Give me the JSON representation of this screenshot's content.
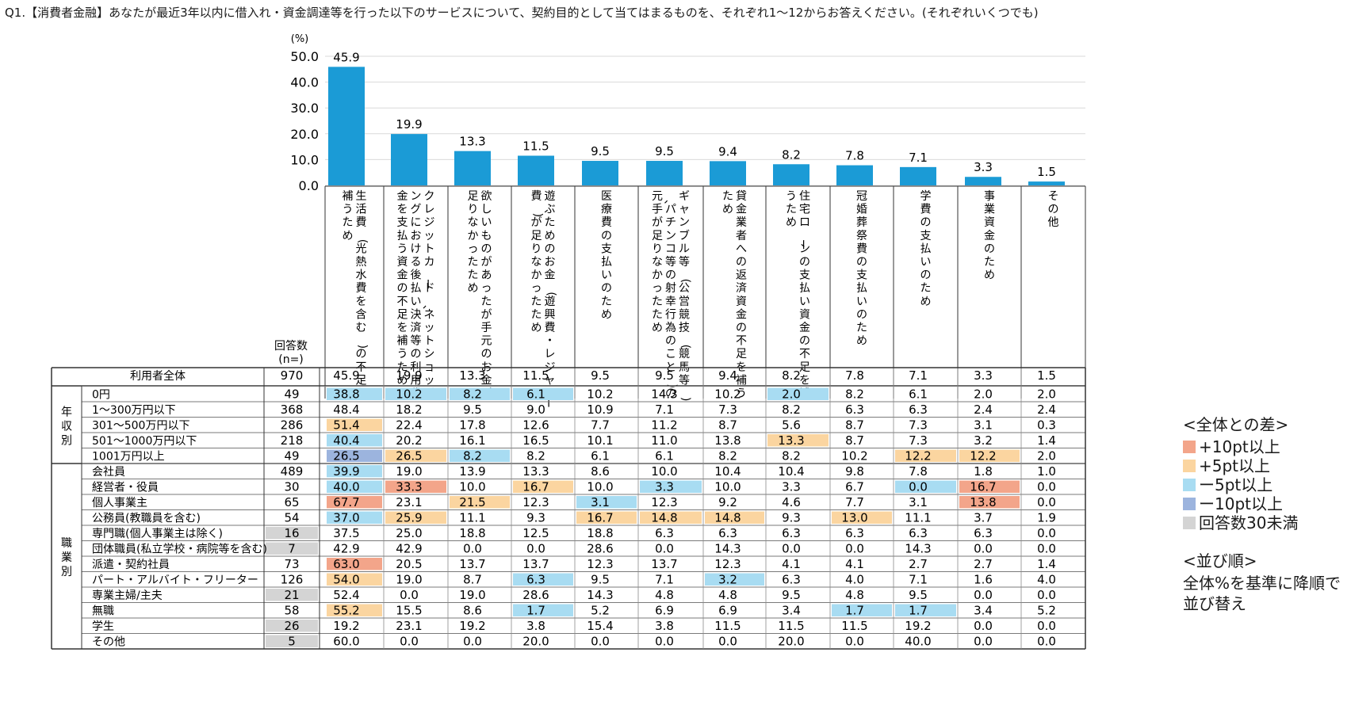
{
  "question": "Q1.【消費者金融】あなたが最近3年以内に借入れ・資金調達等を行った以下のサービスについて、契約目的として当てはまるものを、それぞれ1〜12からお答えください。(それぞれいくつでも)",
  "chart_data": {
    "type": "bar",
    "unit_label": "(%)",
    "ylim": [
      0,
      50
    ],
    "yticks": [
      "0.0",
      "10.0",
      "20.0",
      "30.0",
      "40.0",
      "50.0"
    ],
    "categories": [
      "生活費(光熱水費を含む)の不足を補うため",
      "クレジットカード、ネットショッピングにおける後払い決済等の利用代金を支払う資金の不足を補うため",
      "欲しいものがあったが手元のお金が足りなかったため",
      "遊ぶためのお金(遊興費・レジャー費)が足りなかったため",
      "医療費の支払いのため",
      "ギャンブル等(公営競技(競馬等)、パチンコ等の射幸行為のこと)の元手が足りなかったため",
      "貸金業者への返済資金の不足を補うため",
      "住宅ローンの支払い資金の不足を補うため",
      "冠婚葬祭費の支払いのため",
      "学費の支払いのため",
      "事業資金のため",
      "その他"
    ],
    "values": [
      45.9,
      19.9,
      13.3,
      11.5,
      9.5,
      9.5,
      9.4,
      8.2,
      7.8,
      7.1,
      3.3,
      1.5
    ],
    "bar_color": "#1b9bd6",
    "grid": true
  },
  "table": {
    "n_header": "回答数(n=)",
    "total": {
      "label": "利用者全体",
      "n": "970",
      "values": [
        "45.9",
        "19.9",
        "13.3",
        "11.5",
        "9.5",
        "9.5",
        "9.4",
        "8.2",
        "7.8",
        "7.1",
        "3.3",
        "1.5"
      ]
    },
    "groups": [
      {
        "label": "年収別",
        "rows": [
          {
            "label": "0円",
            "n": "49",
            "values": [
              "38.8",
              "10.2",
              "8.2",
              "6.1",
              "10.2",
              "14.3",
              "10.2",
              "2.0",
              "8.2",
              "6.1",
              "2.0",
              "2.0"
            ],
            "marks": [
              "m5",
              "m5",
              "m5",
              "m5",
              "",
              "",
              "",
              "m5",
              "",
              "",
              "",
              ""
            ]
          },
          {
            "label": "1〜300万円以下",
            "n": "368",
            "values": [
              "48.4",
              "18.2",
              "9.5",
              "9.0",
              "10.9",
              "7.1",
              "7.3",
              "8.2",
              "6.3",
              "6.3",
              "2.4",
              "2.4"
            ],
            "marks": [
              "",
              "",
              "",
              "",
              "",
              "",
              "",
              "",
              "",
              "",
              "",
              ""
            ]
          },
          {
            "label": "301〜500万円以下",
            "n": "286",
            "values": [
              "51.4",
              "22.4",
              "17.8",
              "12.6",
              "7.7",
              "11.2",
              "8.7",
              "5.6",
              "8.7",
              "7.3",
              "3.1",
              "0.3"
            ],
            "marks": [
              "p5",
              "",
              "",
              "",
              "",
              "",
              "",
              "",
              "",
              "",
              "",
              ""
            ]
          },
          {
            "label": "501〜1000万円以下",
            "n": "218",
            "values": [
              "40.4",
              "20.2",
              "16.1",
              "16.5",
              "10.1",
              "11.0",
              "13.8",
              "13.3",
              "8.7",
              "7.3",
              "3.2",
              "1.4"
            ],
            "marks": [
              "m5",
              "",
              "",
              "",
              "",
              "",
              "",
              "p5",
              "",
              "",
              "",
              ""
            ]
          },
          {
            "label": "1001万円以上",
            "n": "49",
            "values": [
              "26.5",
              "26.5",
              "8.2",
              "8.2",
              "6.1",
              "6.1",
              "8.2",
              "8.2",
              "10.2",
              "12.2",
              "12.2",
              "2.0"
            ],
            "marks": [
              "m10",
              "p5",
              "m5",
              "",
              "",
              "",
              "",
              "",
              "",
              "p5",
              "p5",
              ""
            ]
          }
        ]
      },
      {
        "label": "職業別",
        "rows": [
          {
            "label": "会社員",
            "n": "489",
            "values": [
              "39.9",
              "19.0",
              "13.9",
              "13.3",
              "8.6",
              "10.0",
              "10.4",
              "10.4",
              "9.8",
              "7.8",
              "1.8",
              "1.0"
            ],
            "marks": [
              "m5",
              "",
              "",
              "",
              "",
              "",
              "",
              "",
              "",
              "",
              "",
              ""
            ]
          },
          {
            "label": "経営者・役員",
            "n": "30",
            "values": [
              "40.0",
              "33.3",
              "10.0",
              "16.7",
              "10.0",
              "3.3",
              "10.0",
              "3.3",
              "6.7",
              "0.0",
              "16.7",
              "0.0"
            ],
            "marks": [
              "m5",
              "p10",
              "",
              "p5",
              "",
              "m5",
              "",
              "",
              "",
              "m5",
              "p10",
              ""
            ]
          },
          {
            "label": "個人事業主",
            "n": "65",
            "values": [
              "67.7",
              "23.1",
              "21.5",
              "12.3",
              "3.1",
              "12.3",
              "9.2",
              "4.6",
              "7.7",
              "3.1",
              "13.8",
              "0.0"
            ],
            "marks": [
              "p10",
              "",
              "p5",
              "",
              "m5",
              "",
              "",
              "",
              "",
              "",
              "p10",
              ""
            ]
          },
          {
            "label": "公務員(教職員を含む)",
            "n": "54",
            "values": [
              "37.0",
              "25.9",
              "11.1",
              "9.3",
              "16.7",
              "14.8",
              "14.8",
              "9.3",
              "13.0",
              "11.1",
              "3.7",
              "1.9"
            ],
            "marks": [
              "m5",
              "p5",
              "",
              "",
              "p5",
              "p5",
              "p5",
              "",
              "p5",
              "",
              "",
              ""
            ]
          },
          {
            "label": "専門職(個人事業主は除く)",
            "n": "16",
            "values": [
              "37.5",
              "25.0",
              "18.8",
              "12.5",
              "18.8",
              "6.3",
              "6.3",
              "6.3",
              "6.3",
              "6.3",
              "6.3",
              "0.0"
            ],
            "marks": [
              "",
              "",
              "",
              "",
              "",
              "",
              "",
              "",
              "",
              "",
              "",
              ""
            ],
            "low_n": true
          },
          {
            "label": "団体職員(私立学校・病院等を含む)",
            "n": "7",
            "values": [
              "42.9",
              "42.9",
              "0.0",
              "0.0",
              "28.6",
              "0.0",
              "14.3",
              "0.0",
              "0.0",
              "14.3",
              "0.0",
              "0.0"
            ],
            "marks": [
              "",
              "",
              "",
              "",
              "",
              "",
              "",
              "",
              "",
              "",
              "",
              ""
            ],
            "low_n": true
          },
          {
            "label": "派遣・契約社員",
            "n": "73",
            "values": [
              "63.0",
              "20.5",
              "13.7",
              "13.7",
              "12.3",
              "13.7",
              "12.3",
              "4.1",
              "4.1",
              "2.7",
              "2.7",
              "1.4"
            ],
            "marks": [
              "p10",
              "",
              "",
              "",
              "",
              "",
              "",
              "",
              "",
              "",
              "",
              ""
            ]
          },
          {
            "label": "パート・アルバイト・フリーター",
            "n": "126",
            "values": [
              "54.0",
              "19.0",
              "8.7",
              "6.3",
              "9.5",
              "7.1",
              "3.2",
              "6.3",
              "4.0",
              "7.1",
              "1.6",
              "4.0"
            ],
            "marks": [
              "p5",
              "",
              "",
              "m5",
              "",
              "",
              "m5",
              "",
              "",
              "",
              "",
              ""
            ]
          },
          {
            "label": "専業主婦/主夫",
            "n": "21",
            "values": [
              "52.4",
              "0.0",
              "19.0",
              "28.6",
              "14.3",
              "4.8",
              "4.8",
              "9.5",
              "4.8",
              "9.5",
              "0.0",
              "0.0"
            ],
            "marks": [
              "",
              "",
              "",
              "",
              "",
              "",
              "",
              "",
              "",
              "",
              "",
              ""
            ],
            "low_n": true
          },
          {
            "label": "無職",
            "n": "58",
            "values": [
              "55.2",
              "15.5",
              "8.6",
              "1.7",
              "5.2",
              "6.9",
              "6.9",
              "3.4",
              "1.7",
              "1.7",
              "3.4",
              "5.2"
            ],
            "marks": [
              "p5",
              "",
              "",
              "m5",
              "",
              "",
              "",
              "",
              "m5",
              "m5",
              "",
              ""
            ]
          },
          {
            "label": "学生",
            "n": "26",
            "values": [
              "19.2",
              "23.1",
              "19.2",
              "3.8",
              "15.4",
              "3.8",
              "11.5",
              "11.5",
              "11.5",
              "19.2",
              "0.0",
              "0.0"
            ],
            "marks": [
              "",
              "",
              "",
              "",
              "",
              "",
              "",
              "",
              "",
              "",
              "",
              ""
            ],
            "low_n": true
          },
          {
            "label": "その他",
            "n": "5",
            "values": [
              "60.0",
              "0.0",
              "0.0",
              "20.0",
              "0.0",
              "0.0",
              "0.0",
              "20.0",
              "0.0",
              "40.0",
              "0.0",
              "0.0"
            ],
            "marks": [
              "",
              "",
              "",
              "",
              "",
              "",
              "",
              "",
              "",
              "",
              "",
              ""
            ],
            "low_n": true
          }
        ]
      }
    ]
  },
  "legend": {
    "title": "<全体との差>",
    "items": [
      {
        "key": "p10",
        "label": "+10pt以上",
        "color": "#f3a58a"
      },
      {
        "key": "p5",
        "label": "+5pt以上",
        "color": "#fbd5a0"
      },
      {
        "key": "m5",
        "label": "ー5pt以上",
        "color": "#a8dcf2"
      },
      {
        "key": "m10",
        "label": "ー10pt以上",
        "color": "#9cb4de"
      },
      {
        "key": "low",
        "label": "回答数30未満",
        "color": "#d4d4d4"
      }
    ],
    "sort_title": "<並び順>",
    "sort_text": [
      "全体%を基準に降順で",
      "並び替え"
    ]
  }
}
